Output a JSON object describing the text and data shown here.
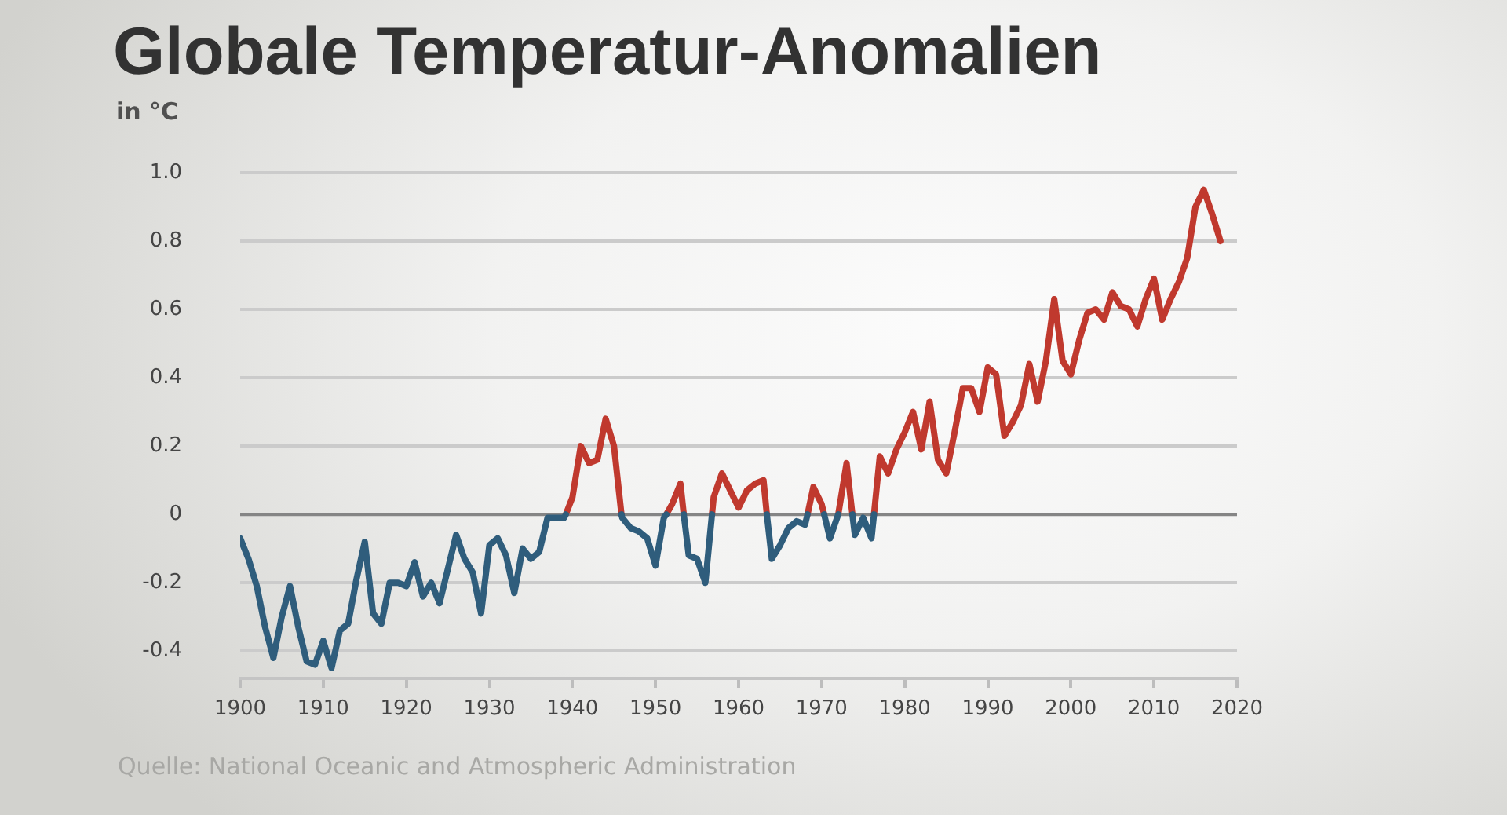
{
  "chart_data": {
    "type": "line",
    "title": "Globale Temperatur-Anomalien",
    "ylabel": "in °C",
    "annotations": [
      "Quelle: National Oceanic and Atmospheric Administration"
    ],
    "series": [
      {
        "color": "#2f5d7c",
        "x": [
          1900,
          1901,
          1902,
          1903,
          1904,
          1905,
          1906,
          1907,
          1908,
          1909,
          1910,
          1911,
          1912,
          1913,
          1914,
          1915,
          1916,
          1917,
          1918,
          1919,
          1920,
          1921,
          1922,
          1923,
          1924,
          1925,
          1926,
          1927,
          1928,
          1929,
          1930,
          1931,
          1932,
          1933,
          1934,
          1935,
          1936,
          1937,
          1938,
          1939,
          1939.2,
          1940,
          1945.9,
          1946,
          1947,
          1948,
          1949,
          1950,
          1951,
          1951.3,
          1952,
          1953.4,
          1954,
          1955,
          1956,
          1956.8,
          1957,
          1963.4,
          1964,
          1965,
          1966,
          1967,
          1968,
          1968.3,
          1969,
          1970.3,
          1971,
          1972,
          1973,
          1973.7,
          1974,
          1975,
          1976,
          1976.3
        ],
        "values": [
          -0.07,
          -0.13,
          -0.21,
          -0.33,
          -0.42,
          -0.3,
          -0.21,
          -0.33,
          -0.43,
          -0.44,
          -0.37,
          -0.45,
          -0.34,
          -0.32,
          -0.19,
          -0.08,
          -0.29,
          -0.32,
          -0.2,
          -0.2,
          -0.21,
          -0.14,
          -0.24,
          -0.2,
          -0.26,
          -0.16,
          -0.06,
          -0.13,
          -0.17,
          -0.29,
          -0.09,
          -0.07,
          -0.12,
          -0.23,
          -0.1,
          -0.13,
          -0.11,
          -0.01,
          -0.01,
          -0.01,
          0,
          null,
          0,
          -0.01,
          -0.04,
          -0.05,
          -0.07,
          -0.15,
          -0.01,
          0,
          null,
          0,
          -0.12,
          -0.13,
          -0.2,
          0,
          null,
          0,
          -0.13,
          -0.09,
          -0.04,
          -0.02,
          -0.03,
          0,
          null,
          0,
          -0.07,
          0,
          null,
          0,
          -0.06,
          -0.01,
          -0.07,
          0
        ]
      },
      {
        "color": "#c0392e",
        "x": [
          1939.2,
          1940,
          1941,
          1942,
          1943,
          1944,
          1945,
          1945.9,
          1948,
          1951.3,
          1952,
          1953,
          1953.4,
          1955,
          1956.8,
          1957,
          1958,
          1959,
          1960,
          1961,
          1962,
          1963,
          1963.4,
          1966,
          1968.3,
          1969,
          1970,
          1970.3,
          1971,
          1972,
          1973,
          1973.7,
          1974,
          1976.3,
          1977,
          1978,
          1979,
          1980,
          1981,
          1982,
          1983,
          1984,
          1985,
          1986,
          1987,
          1988,
          1989,
          1990,
          1991,
          1992,
          1993,
          1994,
          1995,
          1996,
          1997,
          1998,
          1999,
          2000,
          2001,
          2002,
          2003,
          2004,
          2005,
          2006,
          2007,
          2008,
          2009,
          2010,
          2011,
          2012,
          2013,
          2014,
          2015,
          2016,
          2017,
          2018
        ],
        "values": [
          0,
          0.05,
          0.2,
          0.15,
          0.16,
          0.28,
          0.2,
          0,
          null,
          0,
          0.03,
          0.09,
          0,
          null,
          0,
          0.05,
          0.12,
          0.07,
          0.02,
          0.07,
          0.09,
          0.1,
          0,
          null,
          0,
          0.08,
          0.03,
          0,
          null,
          0.0,
          0.15,
          0,
          null,
          0,
          0.17,
          0.12,
          0.19,
          0.24,
          0.3,
          0.19,
          0.33,
          0.16,
          0.12,
          0.24,
          0.37,
          0.37,
          0.3,
          0.43,
          0.41,
          0.23,
          0.27,
          0.32,
          0.44,
          0.33,
          0.45,
          0.63,
          0.45,
          0.41,
          0.51,
          0.59,
          0.6,
          0.57,
          0.65,
          0.61,
          0.6,
          0.55,
          0.63,
          0.69,
          0.57,
          0.63,
          0.68,
          0.75,
          0.9,
          0.95,
          0.88,
          0.8
        ]
      }
    ],
    "xlim": [
      1900,
      2020
    ],
    "xticks": [
      1900,
      1910,
      1920,
      1930,
      1940,
      1950,
      1960,
      1970,
      1980,
      1990,
      2000,
      2010,
      2020
    ],
    "ylim": [
      -0.48,
      1.0
    ],
    "yticks": [
      -0.4,
      -0.2,
      0,
      0.2,
      0.4,
      0.6,
      0.8,
      {
        "value": 1.0,
        "label": "1.0"
      }
    ],
    "ref_lines": [
      {
        "axis": "y",
        "value": 0,
        "color": "#858585"
      }
    ],
    "grid": "y",
    "legend": false,
    "line_style": "solid"
  }
}
